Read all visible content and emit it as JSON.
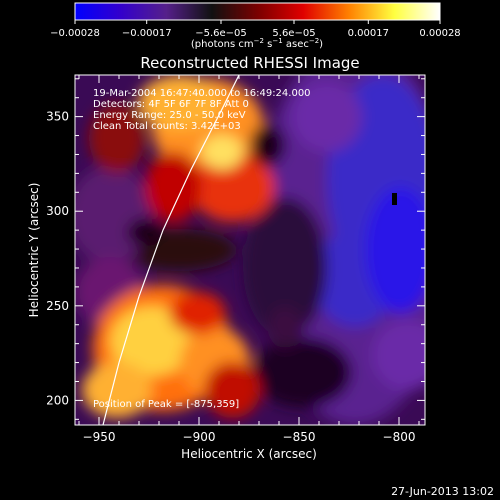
{
  "chart_data": {
    "type": "heatmap",
    "title": "Reconstructed RHESSI Image",
    "xlabel": "Heliocentric X (arcsec)",
    "ylabel": "Heliocentric Y (arcsec)",
    "xlim": [
      -962,
      -787
    ],
    "ylim": [
      187,
      372
    ],
    "x_ticks": [
      -950,
      -900,
      -850,
      -800
    ],
    "y_ticks": [
      200,
      250,
      300,
      350
    ],
    "x_tick_labels": [
      "−950",
      "−900",
      "−850",
      "−800"
    ],
    "y_tick_labels": [
      "200",
      "250",
      "300",
      "350"
    ],
    "colorbar": {
      "min": -0.00028,
      "max": 0.00028,
      "ticks": [
        -0.00028,
        -0.00017,
        -5.6e-05,
        5.6e-05,
        0.00017,
        0.00028
      ],
      "tick_labels": [
        "−0.00028",
        "−0.00017",
        "−5.6e−05",
        "5.6e−05",
        "0.00017",
        "0.00028"
      ],
      "units_prefix": "(photons cm",
      "units_exp1": "−2",
      "units_mid": " s",
      "units_exp2": "−1",
      "units_mid2": " asec",
      "units_exp3": "−2",
      "units_suffix": ")",
      "colors": [
        "#0000ff",
        "#3300cc",
        "#55208a",
        "#111111",
        "#7a0000",
        "#e00000",
        "#ff8000",
        "#ffff40",
        "#ffffff"
      ]
    },
    "annotations": [
      "19-Mar-2004 16:47:40.000 to 16:49:24.000",
      "Detectors: 4F 5F 6F 7F 8F  Att 0",
      "Energy Range: 25.0 - 50.0 keV",
      "Clean     Total counts: 3.42E+03"
    ],
    "peak_label": "Position of Peak = [-875,359]",
    "peak": [
      -875,
      359
    ],
    "limb_curve": [
      [
        -948,
        187
      ],
      [
        -940,
        220
      ],
      [
        -930,
        255
      ],
      [
        -918,
        290
      ],
      [
        -904,
        322
      ],
      [
        -888,
        355
      ],
      [
        -880,
        372
      ]
    ],
    "grid": false,
    "legend": "none"
  },
  "footer": {
    "timestamp": "27-Jun-2013 13:02"
  }
}
